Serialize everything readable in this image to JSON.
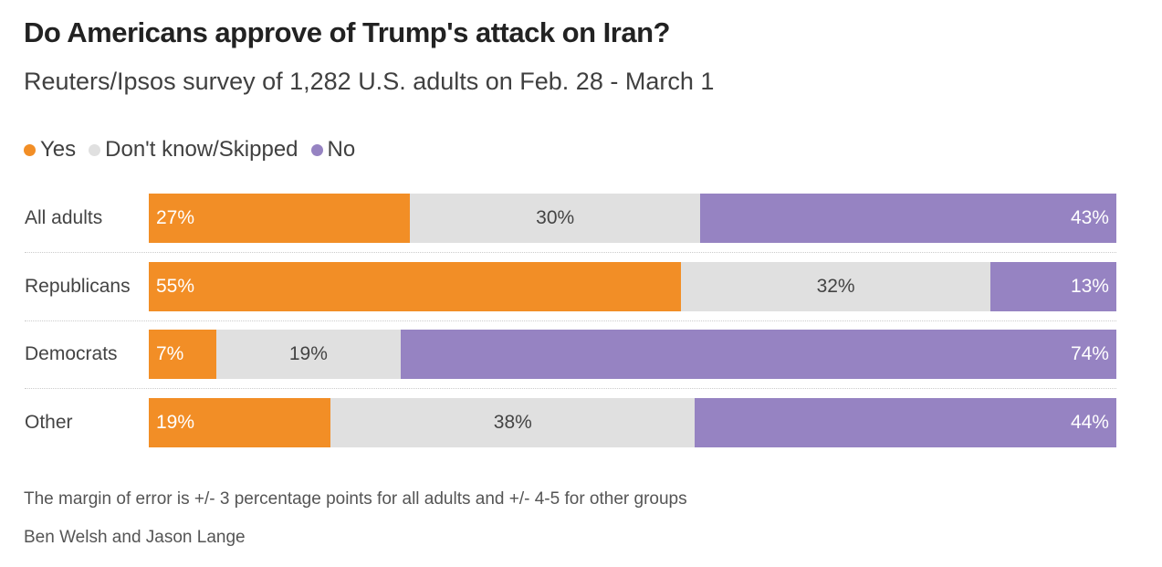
{
  "chart_data": {
    "type": "bar",
    "orientation": "horizontal-stacked-100",
    "title": "Do Americans approve of Trump's attack on Iran?",
    "subtitle": "Reuters/Ipsos survey of 1,282 U.S. adults on Feb. 28 - March 1",
    "categories": [
      "All adults",
      "Republicans",
      "Democrats",
      "Other"
    ],
    "series": [
      {
        "name": "Yes",
        "color": "#F28E26",
        "values": [
          27,
          55,
          7,
          19
        ]
      },
      {
        "name": "Don't know/Skipped",
        "color": "#E0E0E0",
        "values": [
          30,
          32,
          19,
          38
        ]
      },
      {
        "name": "No",
        "color": "#9683C2",
        "values": [
          43,
          13,
          74,
          44
        ]
      }
    ],
    "value_suffix": "%",
    "legend_position": "top-left",
    "notes": [
      "The margin of error is +/- 3 percentage points for all adults and +/- 4-5 for other groups",
      "Ben Welsh and Jason Lange"
    ]
  }
}
